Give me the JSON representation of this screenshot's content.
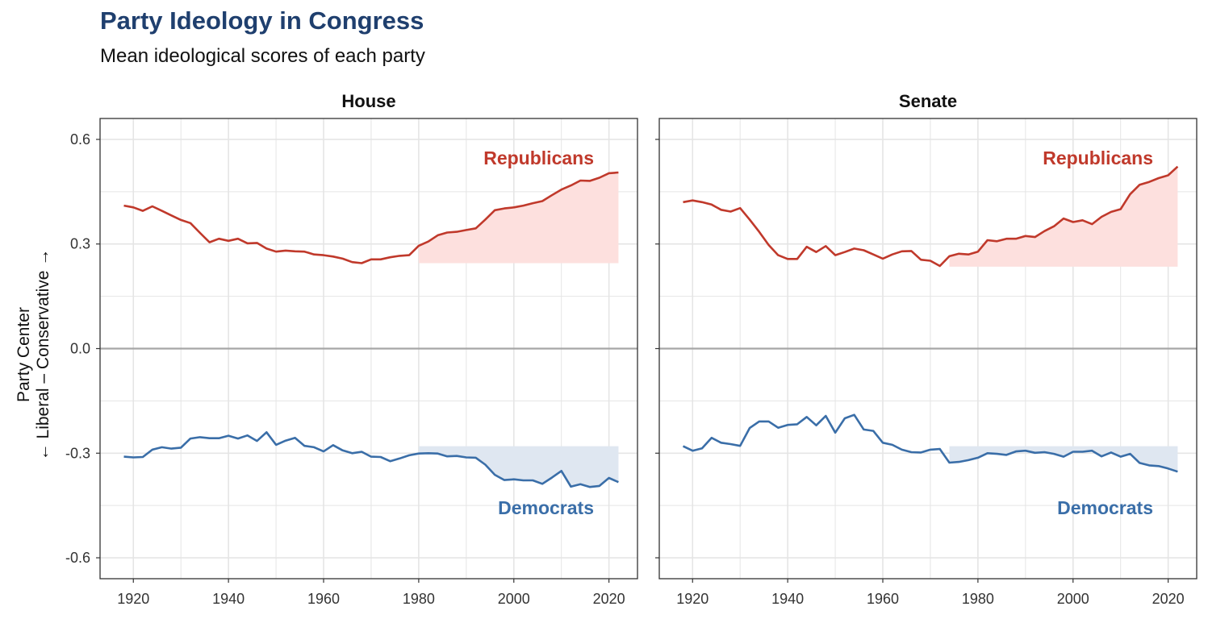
{
  "title": "Party Ideology in Congress",
  "subtitle": "Mean ideological scores of each party",
  "colors": {
    "republican": "#c0392b",
    "republican_fill": "#fde0de",
    "democrat": "#3a6ea8",
    "democrat_fill": "#dfe7f1",
    "zero_line": "#a6a6a6",
    "grid": "#e5e5e5",
    "title": "#1f3f6e"
  },
  "chart_data": [
    {
      "type": "line",
      "panel": "House",
      "ylabel_line1": "Party Center",
      "ylabel_line2": "← Liberal – Conservative →",
      "xlim": [
        1913,
        2026
      ],
      "ylim": [
        -0.66,
        0.66
      ],
      "x_ticks": [
        1920,
        1940,
        1960,
        1980,
        2000,
        2020
      ],
      "y_ticks": [
        -0.6,
        -0.3,
        0.0,
        0.3,
        0.6
      ],
      "y_tick_labels": [
        "-0.6",
        "-0.3",
        "0.0",
        "0.3",
        "0.6"
      ],
      "fill_from_year": 1980,
      "series": [
        {
          "name": "Republicans",
          "fill_baseline": 0.245,
          "x": [
            1918,
            1920,
            1922,
            1924,
            1926,
            1928,
            1930,
            1932,
            1934,
            1936,
            1938,
            1940,
            1942,
            1944,
            1946,
            1948,
            1950,
            1952,
            1954,
            1956,
            1958,
            1960,
            1962,
            1964,
            1966,
            1968,
            1970,
            1972,
            1974,
            1976,
            1978,
            1980,
            1982,
            1984,
            1986,
            1988,
            1990,
            1992,
            1994,
            1996,
            1998,
            2000,
            2002,
            2004,
            2006,
            2008,
            2010,
            2012,
            2014,
            2016,
            2018,
            2020,
            2022
          ],
          "y": [
            0.41,
            0.405,
            0.395,
            0.408,
            0.395,
            0.382,
            0.369,
            0.36,
            0.332,
            0.305,
            0.315,
            0.309,
            0.315,
            0.302,
            0.303,
            0.287,
            0.278,
            0.281,
            0.279,
            0.278,
            0.27,
            0.268,
            0.264,
            0.258,
            0.248,
            0.245,
            0.256,
            0.256,
            0.262,
            0.266,
            0.268,
            0.295,
            0.307,
            0.325,
            0.333,
            0.335,
            0.34,
            0.345,
            0.37,
            0.397,
            0.402,
            0.405,
            0.41,
            0.417,
            0.423,
            0.44,
            0.456,
            0.468,
            0.482,
            0.481,
            0.49,
            0.503,
            0.505
          ]
        },
        {
          "name": "Democrats",
          "fill_baseline": -0.28,
          "x": [
            1918,
            1920,
            1922,
            1924,
            1926,
            1928,
            1930,
            1932,
            1934,
            1936,
            1938,
            1940,
            1942,
            1944,
            1946,
            1948,
            1950,
            1952,
            1954,
            1956,
            1958,
            1960,
            1962,
            1964,
            1966,
            1968,
            1970,
            1972,
            1974,
            1976,
            1978,
            1980,
            1982,
            1984,
            1986,
            1988,
            1990,
            1992,
            1994,
            1996,
            1998,
            2000,
            2002,
            2004,
            2006,
            2008,
            2010,
            2012,
            2014,
            2016,
            2018,
            2020,
            2022
          ],
          "y": [
            -0.31,
            -0.312,
            -0.311,
            -0.29,
            -0.283,
            -0.287,
            -0.284,
            -0.258,
            -0.254,
            -0.257,
            -0.257,
            -0.25,
            -0.258,
            -0.249,
            -0.265,
            -0.24,
            -0.276,
            -0.264,
            -0.256,
            -0.279,
            -0.283,
            -0.295,
            -0.277,
            -0.292,
            -0.3,
            -0.296,
            -0.31,
            -0.311,
            -0.323,
            -0.315,
            -0.306,
            -0.301,
            -0.3,
            -0.301,
            -0.309,
            -0.308,
            -0.312,
            -0.313,
            -0.333,
            -0.362,
            -0.377,
            -0.375,
            -0.378,
            -0.378,
            -0.388,
            -0.37,
            -0.351,
            -0.396,
            -0.389,
            -0.397,
            -0.394,
            -0.371,
            -0.383
          ]
        }
      ],
      "labels": {
        "republicans": "Republicans",
        "democrats": "Democrats"
      }
    },
    {
      "type": "line",
      "panel": "Senate",
      "xlim": [
        1913,
        2026
      ],
      "ylim": [
        -0.66,
        0.66
      ],
      "x_ticks": [
        1920,
        1940,
        1960,
        1980,
        2000,
        2020
      ],
      "y_ticks": [
        -0.6,
        -0.3,
        0.0,
        0.3,
        0.6
      ],
      "fill_from_year": 1974,
      "series": [
        {
          "name": "Republicans",
          "fill_baseline": 0.235,
          "x": [
            1918,
            1920,
            1922,
            1924,
            1926,
            1928,
            1930,
            1932,
            1934,
            1936,
            1938,
            1940,
            1942,
            1944,
            1946,
            1948,
            1950,
            1952,
            1954,
            1956,
            1958,
            1960,
            1962,
            1964,
            1966,
            1968,
            1970,
            1972,
            1974,
            1976,
            1978,
            1980,
            1982,
            1984,
            1986,
            1988,
            1990,
            1992,
            1994,
            1996,
            1998,
            2000,
            2002,
            2004,
            2006,
            2008,
            2010,
            2012,
            2014,
            2016,
            2018,
            2020,
            2022
          ],
          "y": [
            0.42,
            0.425,
            0.42,
            0.413,
            0.398,
            0.393,
            0.403,
            0.37,
            0.335,
            0.297,
            0.268,
            0.257,
            0.257,
            0.292,
            0.277,
            0.294,
            0.268,
            0.277,
            0.287,
            0.282,
            0.27,
            0.258,
            0.27,
            0.279,
            0.28,
            0.255,
            0.252,
            0.237,
            0.265,
            0.272,
            0.27,
            0.278,
            0.311,
            0.308,
            0.315,
            0.315,
            0.323,
            0.32,
            0.337,
            0.351,
            0.373,
            0.363,
            0.368,
            0.357,
            0.378,
            0.392,
            0.4,
            0.443,
            0.47,
            0.478,
            0.489,
            0.497,
            0.522
          ]
        },
        {
          "name": "Democrats",
          "fill_baseline": -0.28,
          "x": [
            1918,
            1920,
            1922,
            1924,
            1926,
            1928,
            1930,
            1932,
            1934,
            1936,
            1938,
            1940,
            1942,
            1944,
            1946,
            1948,
            1950,
            1952,
            1954,
            1956,
            1958,
            1960,
            1962,
            1964,
            1966,
            1968,
            1970,
            1972,
            1974,
            1976,
            1978,
            1980,
            1982,
            1984,
            1986,
            1988,
            1990,
            1992,
            1994,
            1996,
            1998,
            2000,
            2002,
            2004,
            2006,
            2008,
            2010,
            2012,
            2014,
            2016,
            2018,
            2020,
            2022
          ],
          "y": [
            -0.28,
            -0.293,
            -0.286,
            -0.256,
            -0.27,
            -0.274,
            -0.279,
            -0.228,
            -0.209,
            -0.209,
            -0.227,
            -0.219,
            -0.217,
            -0.196,
            -0.22,
            -0.193,
            -0.241,
            -0.2,
            -0.19,
            -0.232,
            -0.236,
            -0.27,
            -0.276,
            -0.29,
            -0.297,
            -0.298,
            -0.29,
            -0.288,
            -0.327,
            -0.325,
            -0.32,
            -0.313,
            -0.3,
            -0.302,
            -0.305,
            -0.295,
            -0.293,
            -0.299,
            -0.297,
            -0.302,
            -0.31,
            -0.296,
            -0.296,
            -0.293,
            -0.309,
            -0.298,
            -0.31,
            -0.302,
            -0.328,
            -0.335,
            -0.337,
            -0.344,
            -0.353
          ]
        }
      ],
      "labels": {
        "republicans": "Republicans",
        "democrats": "Democrats"
      }
    }
  ]
}
